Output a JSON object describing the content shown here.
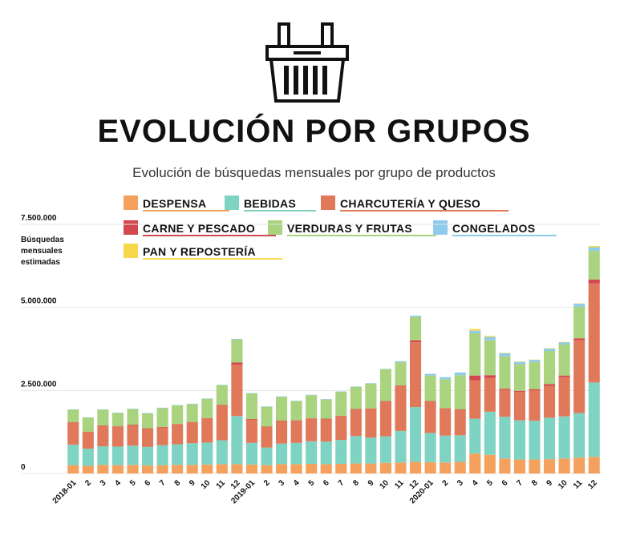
{
  "title": "EVOLUCIÓN POR GRUPOS",
  "subtitle": "Evolución de búsquedas mensuales por grupo de productos",
  "icon": "shopping-basket-icon",
  "chart_data": {
    "type": "bar",
    "stacked": true,
    "ylabel_lines": [
      "Búsquedas",
      "mensuales",
      "estimadas"
    ],
    "ylim": [
      0,
      7500000
    ],
    "yticks": [
      0,
      2500000,
      5000000,
      7500000
    ],
    "ytick_labels": [
      "0",
      "2.500.000",
      "5.000.000",
      "7.500.000"
    ],
    "grid": "horizontal",
    "legend_position": "top",
    "categories": [
      "2018-01",
      "2",
      "3",
      "4",
      "5",
      "6",
      "7",
      "8",
      "9",
      "10",
      "11",
      "12",
      "2019-01",
      "2",
      "3",
      "4",
      "5",
      "6",
      "7",
      "8",
      "9",
      "10",
      "11",
      "12",
      "2020-01",
      "2",
      "3",
      "4",
      "5",
      "6",
      "7",
      "8",
      "9",
      "10",
      "11",
      "12"
    ],
    "series": [
      {
        "name": "DESPENSA",
        "color": "#F5A15E",
        "values": [
          250000,
          230000,
          260000,
          250000,
          260000,
          240000,
          250000,
          260000,
          260000,
          270000,
          280000,
          280000,
          270000,
          250000,
          280000,
          280000,
          290000,
          280000,
          290000,
          300000,
          300000,
          320000,
          330000,
          350000,
          340000,
          330000,
          350000,
          600000,
          560000,
          450000,
          420000,
          420000,
          430000,
          450000,
          480000,
          500000
        ]
      },
      {
        "name": "BEBIDAS",
        "color": "#7FD3C2",
        "values": [
          620000,
          520000,
          560000,
          560000,
          580000,
          560000,
          600000,
          620000,
          650000,
          660000,
          720000,
          1450000,
          650000,
          530000,
          620000,
          640000,
          680000,
          680000,
          720000,
          830000,
          780000,
          800000,
          950000,
          1650000,
          880000,
          810000,
          800000,
          1050000,
          1300000,
          1260000,
          1180000,
          1170000,
          1250000,
          1270000,
          1340000,
          2240000
        ]
      },
      {
        "name": "CHARCUTERÍA Y QUESO",
        "color": "#E0785A",
        "values": [
          670000,
          500000,
          620000,
          600000,
          620000,
          550000,
          540000,
          600000,
          630000,
          730000,
          1060000,
          1550000,
          710000,
          620000,
          680000,
          670000,
          680000,
          680000,
          720000,
          800000,
          870000,
          1050000,
          1360000,
          1950000,
          950000,
          820000,
          770000,
          1150000,
          1020000,
          810000,
          860000,
          910000,
          960000,
          1180000,
          2190000,
          2980000
        ]
      },
      {
        "name": "CARNE Y PESCADO",
        "color": "#D2484E",
        "values": [
          10000,
          10000,
          10000,
          10000,
          10000,
          10000,
          10000,
          10000,
          10000,
          10000,
          10000,
          60000,
          10000,
          10000,
          10000,
          10000,
          10000,
          10000,
          10000,
          10000,
          10000,
          10000,
          10000,
          60000,
          10000,
          10000,
          10000,
          150000,
          80000,
          30000,
          30000,
          40000,
          50000,
          50000,
          60000,
          120000
        ]
      },
      {
        "name": "VERDURAS Y FRUTAS",
        "color": "#A9D37E",
        "values": [
          370000,
          420000,
          470000,
          400000,
          470000,
          450000,
          570000,
          560000,
          540000,
          580000,
          590000,
          700000,
          770000,
          600000,
          720000,
          580000,
          700000,
          580000,
          720000,
          670000,
          750000,
          960000,
          700000,
          700000,
          770000,
          870000,
          1030000,
          1270000,
          1050000,
          980000,
          800000,
          810000,
          1000000,
          930000,
          950000,
          860000
        ]
      },
      {
        "name": "CONGELADOS",
        "color": "#8FCBEA",
        "values": [
          10000,
          10000,
          10000,
          10000,
          10000,
          10000,
          10000,
          10000,
          10000,
          10000,
          10000,
          10000,
          10000,
          10000,
          10000,
          10000,
          10000,
          10000,
          10000,
          10000,
          10000,
          10000,
          30000,
          40000,
          50000,
          60000,
          80000,
          80000,
          100000,
          90000,
          70000,
          70000,
          70000,
          70000,
          90000,
          110000
        ]
      },
      {
        "name": "PAN Y REPOSTERÍA",
        "color": "#F6D84A",
        "values": [
          0,
          0,
          0,
          0,
          0,
          0,
          0,
          0,
          0,
          0,
          0,
          0,
          0,
          0,
          0,
          0,
          0,
          0,
          0,
          0,
          0,
          0,
          0,
          0,
          0,
          0,
          0,
          50000,
          30000,
          10000,
          10000,
          10000,
          10000,
          10000,
          10000,
          40000
        ]
      }
    ]
  }
}
